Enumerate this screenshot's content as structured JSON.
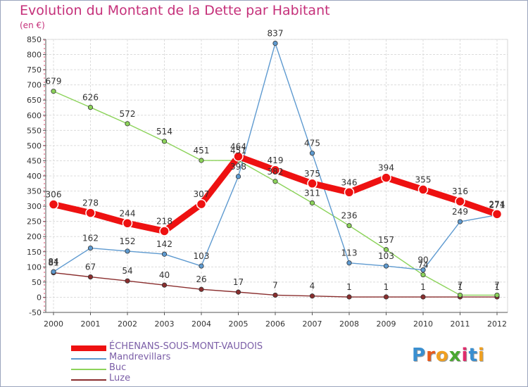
{
  "title": "Evolution du Montant de la Dette par Habitant",
  "subtitle": "(en €)",
  "logo": {
    "text": "Proxiti",
    "letter_colors": [
      "#3a8fd0",
      "#e85a1c",
      "#f0a020",
      "#4aa830",
      "#e02c6c",
      "#3a8fd0",
      "#f0a020"
    ]
  },
  "chart_data": {
    "type": "line",
    "x": [
      "2000",
      "2001",
      "2002",
      "2003",
      "2004",
      "2005",
      "2006",
      "2007",
      "2008",
      "2009",
      "2010",
      "2011",
      "2012"
    ],
    "ylim": [
      -50,
      850
    ],
    "yticks": [
      -50,
      0,
      50,
      100,
      150,
      200,
      250,
      300,
      350,
      400,
      450,
      500,
      550,
      600,
      650,
      700,
      750,
      800,
      850
    ],
    "grid": true,
    "legend_position": "bottom-left",
    "series": [
      {
        "name": "ÉCHENANS-SOUS-MONT-VAUDOIS",
        "color": "#ee1111",
        "values": [
          306,
          278,
          244,
          218,
          307,
          464,
          419,
          375,
          346,
          394,
          355,
          316,
          274
        ]
      },
      {
        "name": "Mandrevillars",
        "color": "#5e9ad0",
        "values": [
          84,
          162,
          152,
          142,
          103,
          398,
          837,
          475,
          113,
          103,
          90,
          249,
          271
        ]
      },
      {
        "name": "Buc",
        "color": "#8cd35a",
        "values": [
          679,
          626,
          572,
          514,
          451,
          451,
          382,
          311,
          236,
          157,
          74,
          7,
          7
        ]
      },
      {
        "name": "Luze",
        "color": "#8a2e2e",
        "values": [
          81,
          67,
          54,
          40,
          26,
          17,
          7,
          4,
          1,
          1,
          1,
          1,
          1
        ]
      }
    ]
  }
}
